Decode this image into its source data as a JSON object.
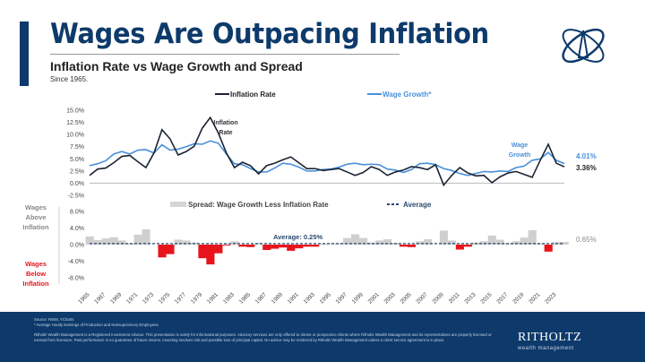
{
  "header": {
    "title": "Wages Are Outpacing Inflation",
    "subtitle": "Inflation Rate vs Wage Growth and Spread",
    "since": "Since 1965."
  },
  "footer": {
    "source": "Source: RWM, YCharts",
    "note": "* Average Hourly Earnings of Production and Nonsupervisory Employees",
    "disclaimer": "Ritholtz Wealth Management is a Registered Investment Advisor. This presentation is solely for informational purposes. Advisory services are only offered to clients or prospective clients where Ritholtz Wealth Management and its representatives are properly licensed or exempt from licensure. Past performance is no guarantee of future returns. Investing involves risk and possible loss of principal capital. No advice may be rendered by Ritholtz Wealth Management unless a client service agreement is in place.",
    "brand": "RITHOLTZ",
    "brand_sub": "wealth management"
  },
  "colors": {
    "navy": "#0d3a6b",
    "inflation": "#1a2433",
    "wage": "#4a90d9",
    "spread_pos": "#cfcfcf",
    "spread_neg": "#e8141b",
    "average": "#2a4a6e"
  },
  "chart_data": [
    {
      "type": "line",
      "legend": [
        "Inflation Rate",
        "Wage Growth*"
      ],
      "ylim": [
        -2.5,
        15
      ],
      "yticks": [
        "15.0%",
        "12.5%",
        "10.0%",
        "7.5%",
        "5.0%",
        "2.5%",
        "0.0%",
        "-2.5%"
      ],
      "x": [
        1965,
        1966,
        1967,
        1968,
        1969,
        1970,
        1971,
        1972,
        1973,
        1974,
        1975,
        1976,
        1977,
        1978,
        1979,
        1980,
        1981,
        1982,
        1983,
        1984,
        1985,
        1986,
        1987,
        1988,
        1989,
        1990,
        1991,
        1992,
        1993,
        1994,
        1995,
        1996,
        1997,
        1998,
        1999,
        2000,
        2001,
        2002,
        2003,
        2004,
        2005,
        2006,
        2007,
        2008,
        2009,
        2010,
        2011,
        2012,
        2013,
        2014,
        2015,
        2016,
        2017,
        2018,
        2019,
        2020,
        2021,
        2022,
        2023,
        2024
      ],
      "series": [
        {
          "name": "Inflation Rate",
          "values": [
            1.6,
            2.9,
            3.1,
            4.2,
            5.5,
            5.7,
            4.4,
            3.2,
            6.2,
            11.0,
            9.1,
            5.8,
            6.5,
            7.6,
            11.3,
            13.5,
            10.3,
            6.2,
            3.2,
            4.3,
            3.6,
            1.9,
            3.6,
            4.1,
            4.8,
            5.4,
            4.2,
            3.0,
            3.0,
            2.6,
            2.8,
            3.0,
            2.3,
            1.6,
            2.2,
            3.4,
            2.8,
            1.6,
            2.3,
            2.7,
            3.4,
            3.2,
            2.8,
            3.8,
            -0.4,
            1.6,
            3.2,
            2.1,
            1.5,
            1.6,
            0.1,
            1.3,
            2.1,
            2.4,
            1.8,
            1.2,
            4.7,
            8.0,
            4.1,
            3.36
          ]
        },
        {
          "name": "Wage Growth",
          "values": [
            3.6,
            4.0,
            4.6,
            6.0,
            6.5,
            6.0,
            6.8,
            6.9,
            6.2,
            7.9,
            6.8,
            7.0,
            7.5,
            8.1,
            8.0,
            8.7,
            8.2,
            6.0,
            4.0,
            3.8,
            3.0,
            2.3,
            2.3,
            3.1,
            4.1,
            3.9,
            3.3,
            2.5,
            2.5,
            2.8,
            2.9,
            3.3,
            3.9,
            4.1,
            3.8,
            3.9,
            3.8,
            2.9,
            2.7,
            2.2,
            2.8,
            4.0,
            4.1,
            3.8,
            3.0,
            2.6,
            2.0,
            1.6,
            2.0,
            2.4,
            2.3,
            2.5,
            2.4,
            3.2,
            3.5,
            4.7,
            5.0,
            6.3,
            4.7,
            4.01
          ]
        }
      ],
      "annotations": {
        "inflation": "Inflation Rate",
        "wage": "Wage Growth",
        "inflation_last": "3.36%",
        "wage_last": "4.01%"
      }
    },
    {
      "type": "bar",
      "legend": [
        "Spread: Wage Growth Less Inflation Rate",
        "Average"
      ],
      "ylim": [
        -8,
        8
      ],
      "yticks": [
        "8.0%",
        "4.0%",
        "0.0%",
        "-4.0%",
        "-8.0%"
      ],
      "xticks": [
        "1965",
        "1967",
        "1969",
        "1971",
        "1973",
        "1975",
        "1977",
        "1979",
        "1981",
        "1983",
        "1985",
        "1987",
        "1989",
        "1991",
        "1993",
        "1995",
        "1997",
        "1999",
        "2001",
        "2003",
        "2005",
        "2007",
        "2009",
        "2011",
        "2013",
        "2015",
        "2017",
        "2019",
        "2021",
        "2023"
      ],
      "values": [
        2.0,
        1.1,
        1.5,
        1.8,
        1.0,
        0.3,
        2.4,
        3.7,
        0.0,
        -3.1,
        -2.3,
        1.2,
        1.0,
        0.5,
        -3.3,
        -4.8,
        -2.1,
        -0.2,
        0.8,
        -0.5,
        -0.6,
        0.4,
        -1.3,
        -1.0,
        -0.7,
        -1.5,
        -0.9,
        -0.5,
        -0.5,
        0.2,
        0.1,
        0.3,
        1.6,
        2.5,
        1.6,
        0.5,
        1.0,
        1.3,
        0.4,
        -0.5,
        -0.6,
        0.8,
        1.3,
        0.0,
        3.4,
        1.0,
        -1.2,
        -0.5,
        0.5,
        0.8,
        2.2,
        1.2,
        0.3,
        0.8,
        1.7,
        3.5,
        0.3,
        -1.7,
        0.6,
        0.65
      ],
      "average": 0.25,
      "average_label": "Average:  0.25%",
      "last_label": "0.65%",
      "above_label": [
        "Wages",
        "Above",
        "Inflation"
      ],
      "below_label": [
        "Wages",
        "Below",
        "Inflation"
      ]
    }
  ]
}
